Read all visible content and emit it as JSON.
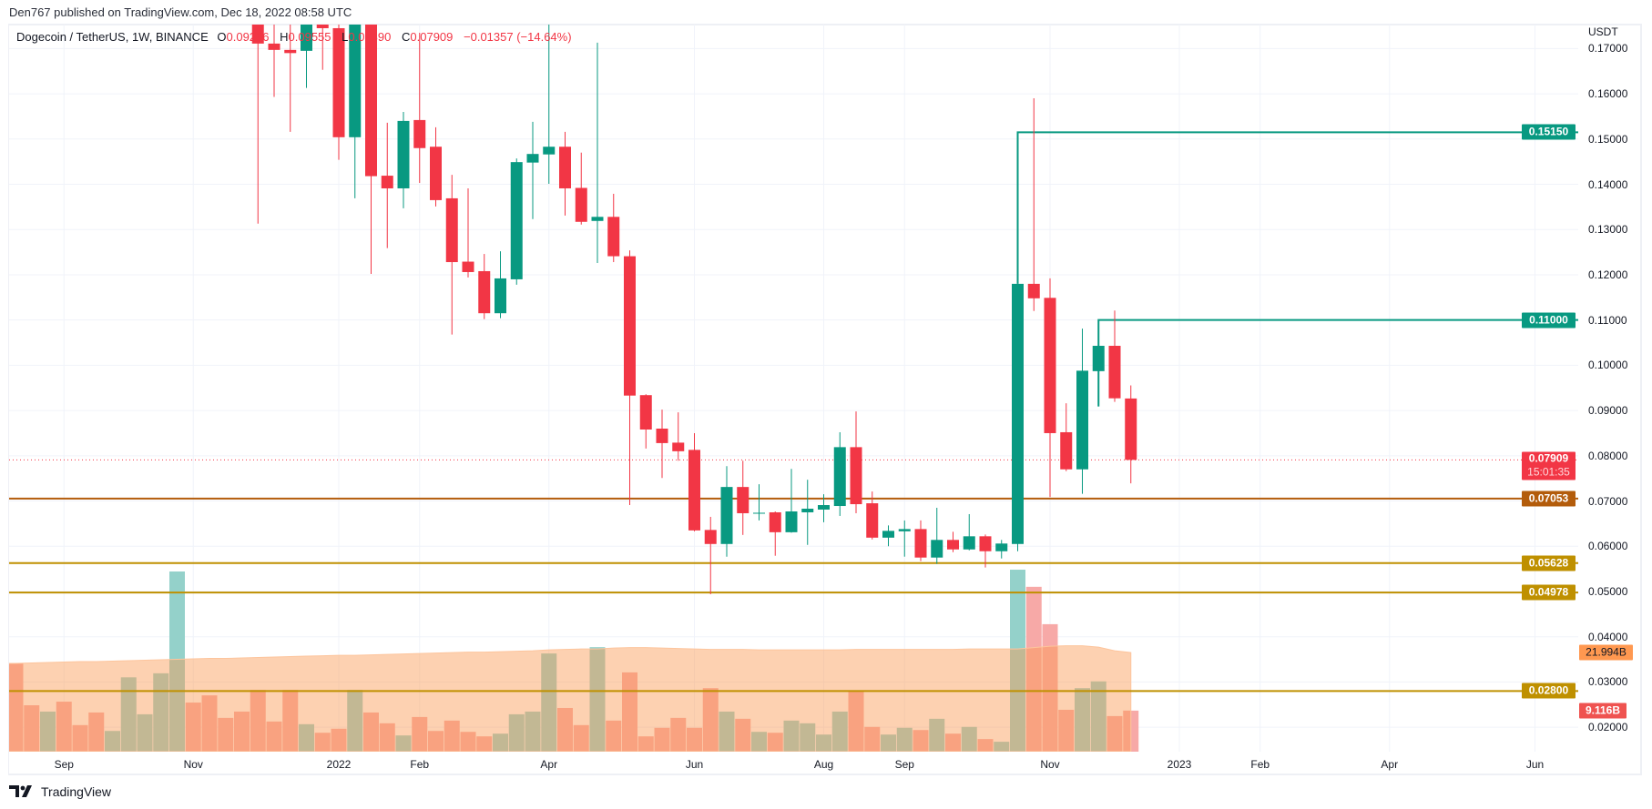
{
  "publish_line": "Den767 published on TradingView.com, Dec 18, 2022 08:58 UTC",
  "legend": {
    "symbol": "Dogecoin / TetherUS, 1W, BINANCE",
    "o_key": "O",
    "o": "0.09266",
    "h_key": "H",
    "h": "0.09555",
    "l_key": "L",
    "l": "0.07390",
    "c_key": "C",
    "c": "0.07909",
    "change": "−0.01357 (−14.64%)"
  },
  "price_axis": {
    "currency": "USDT",
    "ticks": [
      "0.17000",
      "0.16000",
      "0.15000",
      "0.14000",
      "0.13000",
      "0.12000",
      "0.11000",
      "0.10000",
      "0.09000",
      "0.08000",
      "0.07000",
      "0.06000",
      "0.05000",
      "0.04000",
      "0.03000",
      "0.02000"
    ],
    "labels": [
      {
        "text": "0.15150",
        "price": 0.1515,
        "bg": "#089981",
        "fg": "#ffffff"
      },
      {
        "text": "0.11000",
        "price": 0.11,
        "bg": "#089981",
        "fg": "#ffffff"
      },
      {
        "text": "0.07053",
        "price": 0.07053,
        "bg": "#b35c0b",
        "fg": "#ffffff"
      },
      {
        "text": "0.05628",
        "price": 0.05628,
        "bg": "#bf9000",
        "fg": "#ffffff"
      },
      {
        "text": "0.04978",
        "price": 0.04978,
        "bg": "#bf9000",
        "fg": "#ffffff"
      },
      {
        "text": "0.02800",
        "price": 0.028,
        "bg": "#bf9000",
        "fg": "#ffffff"
      }
    ],
    "last_price": {
      "text": "0.07909",
      "price": 0.07909,
      "countdown": "15:01:35",
      "bg": "#f23645"
    },
    "volume_ma_label": {
      "text": "21.994B",
      "value": 21.994,
      "bg": "#ff9850",
      "fg": "#131722"
    },
    "volume_label": {
      "text": "9.116B",
      "value": 9.116,
      "bg": "#ef5350",
      "fg": "#ffffff"
    }
  },
  "time_axis": [
    {
      "label": "Sep",
      "date": "2021-09-06"
    },
    {
      "label": "Nov",
      "date": "2021-11-01"
    },
    {
      "label": "2022",
      "date": "2022-01-03"
    },
    {
      "label": "Feb",
      "date": "2022-02-07"
    },
    {
      "label": "Apr",
      "date": "2022-04-04"
    },
    {
      "label": "Jun",
      "date": "2022-06-06"
    },
    {
      "label": "Aug",
      "date": "2022-08-01"
    },
    {
      "label": "Sep",
      "date": "2022-09-05"
    },
    {
      "label": "Nov",
      "date": "2022-11-07"
    },
    {
      "label": "2023",
      "date": "2023-01-02"
    },
    {
      "label": "Feb",
      "date": "2023-02-06"
    },
    {
      "label": "Apr",
      "date": "2023-04-03"
    },
    {
      "label": "Jun",
      "date": "2023-06-05"
    }
  ],
  "logo_text": "TradingView",
  "colors": {
    "up": "#089981",
    "down": "#f23645",
    "grid": "#f0f3fa",
    "vol_up": "#94d1ca",
    "vol_down": "#f7a9a7",
    "vol_ma_fill": "#fb9a52"
  },
  "chart_data": {
    "type": "candlestick",
    "interval": "1W",
    "ylim": [
      0.0146,
      0.1753
    ],
    "yscale": "linear",
    "grid": true,
    "first_week": "2021-08-16",
    "candles": [
      [
        "2021-11-29",
        0.205,
        0.225,
        0.1313,
        0.1711
      ],
      [
        "2021-12-06",
        0.1711,
        0.18,
        0.1593,
        0.1697
      ],
      [
        "2021-12-13",
        0.1697,
        0.18,
        0.1516,
        0.169
      ],
      [
        "2021-12-20",
        0.1695,
        0.19,
        0.1613,
        0.185
      ],
      [
        "2021-12-27",
        0.185,
        0.19,
        0.1653,
        0.1745
      ],
      [
        "2022-01-03",
        0.1745,
        0.176,
        0.1454,
        0.1504
      ],
      [
        "2022-01-10",
        0.1504,
        0.185,
        0.1369,
        0.178
      ],
      [
        "2022-01-17",
        0.178,
        0.18,
        0.1202,
        0.1418
      ],
      [
        "2022-01-24",
        0.1419,
        0.1536,
        0.1259,
        0.1391
      ],
      [
        "2022-01-31",
        0.1391,
        0.156,
        0.1347,
        0.154
      ],
      [
        "2022-02-07",
        0.1542,
        0.1735,
        0.1403,
        0.148
      ],
      [
        "2022-02-14",
        0.1483,
        0.1526,
        0.1351,
        0.1365
      ],
      [
        "2022-02-21",
        0.1369,
        0.1421,
        0.1068,
        0.1228
      ],
      [
        "2022-02-28",
        0.1229,
        0.1391,
        0.1194,
        0.1206
      ],
      [
        "2022-03-07",
        0.1208,
        0.1246,
        0.1102,
        0.1115
      ],
      [
        "2022-03-14",
        0.1115,
        0.1252,
        0.1104,
        0.1192
      ],
      [
        "2022-03-21",
        0.119,
        0.1457,
        0.1178,
        0.1449
      ],
      [
        "2022-03-28",
        0.1448,
        0.1538,
        0.1323,
        0.1467
      ],
      [
        "2022-04-04",
        0.1466,
        0.18,
        0.1401,
        0.1483
      ],
      [
        "2022-04-11",
        0.1483,
        0.1516,
        0.1331,
        0.1391
      ],
      [
        "2022-04-18",
        0.1392,
        0.147,
        0.1311,
        0.1317
      ],
      [
        "2022-04-25",
        0.1319,
        0.1713,
        0.1226,
        0.1328
      ],
      [
        "2022-05-02",
        0.1328,
        0.1379,
        0.1228,
        0.1241
      ],
      [
        "2022-05-09",
        0.1241,
        0.1254,
        0.0691,
        0.0933
      ],
      [
        "2022-05-16",
        0.0934,
        0.0936,
        0.0816,
        0.0858
      ],
      [
        "2022-05-23",
        0.086,
        0.0902,
        0.0751,
        0.0828
      ],
      [
        "2022-05-30",
        0.0829,
        0.0896,
        0.0789,
        0.081
      ],
      [
        "2022-06-06",
        0.0813,
        0.085,
        0.0633,
        0.0635
      ],
      [
        "2022-06-13",
        0.0636,
        0.0665,
        0.0494,
        0.0605
      ],
      [
        "2022-06-20",
        0.0605,
        0.0777,
        0.0577,
        0.0731
      ],
      [
        "2022-06-27",
        0.0731,
        0.0789,
        0.0625,
        0.0673
      ],
      [
        "2022-07-04",
        0.0673,
        0.0737,
        0.0657,
        0.0674
      ],
      [
        "2022-07-11",
        0.0675,
        0.0677,
        0.0579,
        0.0631
      ],
      [
        "2022-07-18",
        0.0631,
        0.0771,
        0.063,
        0.0677
      ],
      [
        "2022-07-25",
        0.0675,
        0.0747,
        0.0603,
        0.0683
      ],
      [
        "2022-08-01",
        0.0681,
        0.0715,
        0.0653,
        0.0691
      ],
      [
        "2022-08-08",
        0.0689,
        0.0852,
        0.0667,
        0.0819
      ],
      [
        "2022-08-15",
        0.0819,
        0.0898,
        0.0673,
        0.0693
      ],
      [
        "2022-08-22",
        0.0695,
        0.0721,
        0.0615,
        0.0619
      ],
      [
        "2022-08-29",
        0.0619,
        0.0646,
        0.06,
        0.0634
      ],
      [
        "2022-09-05",
        0.0633,
        0.0657,
        0.0577,
        0.0638
      ],
      [
        "2022-09-12",
        0.0638,
        0.0657,
        0.0567,
        0.0575
      ],
      [
        "2022-09-19",
        0.0575,
        0.0685,
        0.0561,
        0.0614
      ],
      [
        "2022-09-26",
        0.0614,
        0.0632,
        0.0587,
        0.0593
      ],
      [
        "2022-10-03",
        0.0593,
        0.0671,
        0.0591,
        0.0622
      ],
      [
        "2022-10-10",
        0.0622,
        0.0626,
        0.0553,
        0.0589
      ],
      [
        "2022-10-17",
        0.0589,
        0.0614,
        0.0573,
        0.0606
      ],
      [
        "2022-10-24",
        0.0605,
        0.118,
        0.0589,
        0.118
      ],
      [
        "2022-10-31",
        0.118,
        0.159,
        0.112,
        0.1148
      ],
      [
        "2022-11-07",
        0.1149,
        0.1192,
        0.0709,
        0.085
      ],
      [
        "2022-11-14",
        0.0852,
        0.0916,
        0.0766,
        0.077
      ],
      [
        "2022-11-21",
        0.077,
        0.1081,
        0.0716,
        0.0988
      ],
      [
        "2022-11-28",
        0.0987,
        0.1043,
        0.0909,
        0.1043
      ],
      [
        "2022-12-05",
        0.1043,
        0.1121,
        0.0919,
        0.0927
      ],
      [
        "2022-12-12",
        0.09266,
        0.09555,
        0.0739,
        0.07909
      ]
    ],
    "volume_unit": "B",
    "volume": [
      [
        19.6,
        "down"
      ],
      [
        10.3,
        "down"
      ],
      [
        8.9,
        "up"
      ],
      [
        11.1,
        "down"
      ],
      [
        5.9,
        "down"
      ],
      [
        8.7,
        "down"
      ],
      [
        4.6,
        "up"
      ],
      [
        16.5,
        "up"
      ],
      [
        8.3,
        "up"
      ],
      [
        17.4,
        "up"
      ],
      [
        40.0,
        "up"
      ],
      [
        10.9,
        "down"
      ],
      [
        12.5,
        "down"
      ],
      [
        7.5,
        "down"
      ],
      [
        8.9,
        "down"
      ],
      [
        13.7,
        "down"
      ],
      [
        6.7,
        "down"
      ],
      [
        13.7,
        "down"
      ],
      [
        6.1,
        "up"
      ],
      [
        4.2,
        "down"
      ],
      [
        5.1,
        "down"
      ],
      [
        13.7,
        "up"
      ],
      [
        8.7,
        "down"
      ],
      [
        6.3,
        "down"
      ],
      [
        3.6,
        "up"
      ],
      [
        7.7,
        "down"
      ],
      [
        4.6,
        "down"
      ],
      [
        6.9,
        "down"
      ],
      [
        4.4,
        "down"
      ],
      [
        3.4,
        "down"
      ],
      [
        4.0,
        "up"
      ],
      [
        8.3,
        "up"
      ],
      [
        8.9,
        "up"
      ],
      [
        21.8,
        "up"
      ],
      [
        9.7,
        "down"
      ],
      [
        5.9,
        "down"
      ],
      [
        23.2,
        "up"
      ],
      [
        6.9,
        "down"
      ],
      [
        17.6,
        "down"
      ],
      [
        3.4,
        "down"
      ],
      [
        5.3,
        "down"
      ],
      [
        7.5,
        "down"
      ],
      [
        5.3,
        "down"
      ],
      [
        14.1,
        "down"
      ],
      [
        8.9,
        "up"
      ],
      [
        7.3,
        "down"
      ],
      [
        4.4,
        "up"
      ],
      [
        4.2,
        "down"
      ],
      [
        6.9,
        "up"
      ],
      [
        6.3,
        "up"
      ],
      [
        3.8,
        "up"
      ],
      [
        8.9,
        "up"
      ],
      [
        13.5,
        "down"
      ],
      [
        5.5,
        "down"
      ],
      [
        3.8,
        "up"
      ],
      [
        5.3,
        "up"
      ],
      [
        4.8,
        "down"
      ],
      [
        7.3,
        "up"
      ],
      [
        4.0,
        "down"
      ],
      [
        5.5,
        "up"
      ],
      [
        2.8,
        "down"
      ],
      [
        2.2,
        "up"
      ],
      [
        40.4,
        "up"
      ],
      [
        36.6,
        "down"
      ],
      [
        28.3,
        "down"
      ],
      [
        9.3,
        "down"
      ],
      [
        14.1,
        "up"
      ],
      [
        15.6,
        "up"
      ],
      [
        7.9,
        "down"
      ],
      [
        9.116,
        "down"
      ]
    ],
    "volume_ma": [
      19.6,
      19.7,
      19.8,
      19.9,
      20.0,
      20.0,
      20.1,
      20.2,
      20.3,
      20.4,
      20.5,
      20.6,
      20.7,
      20.7,
      20.8,
      20.9,
      21.0,
      21.1,
      21.2,
      21.3,
      21.4,
      21.4,
      21.5,
      21.6,
      21.7,
      21.8,
      21.9,
      22.0,
      22.1,
      22.1,
      22.2,
      22.3,
      22.4,
      22.6,
      22.7,
      22.8,
      22.8,
      23.0,
      23.1,
      23.1,
      23.0,
      22.9,
      22.8,
      22.7,
      22.7,
      22.7,
      22.6,
      22.6,
      22.6,
      22.6,
      22.6,
      22.6,
      22.7,
      22.7,
      22.7,
      22.7,
      22.7,
      22.7,
      22.7,
      22.8,
      22.8,
      22.8,
      22.8,
      23.1,
      23.4,
      23.5,
      23.5,
      23.2,
      22.4,
      21.994
    ],
    "drawings": [
      {
        "type": "hline",
        "price": 0.07053,
        "color": "#b35c0b"
      },
      {
        "type": "hline",
        "price": 0.05628,
        "color": "#bf9000"
      },
      {
        "type": "hline",
        "price": 0.04978,
        "color": "#bf9000"
      },
      {
        "type": "hline",
        "price": 0.028,
        "color": "#bf9000"
      },
      {
        "type": "step-line",
        "from_date": "2022-10-24",
        "from_price": 0.118,
        "price": 0.1515,
        "color": "#089981"
      },
      {
        "type": "step-line",
        "from_date": "2022-11-28",
        "from_price": 0.0909,
        "price": 0.11,
        "color": "#089981"
      }
    ]
  }
}
